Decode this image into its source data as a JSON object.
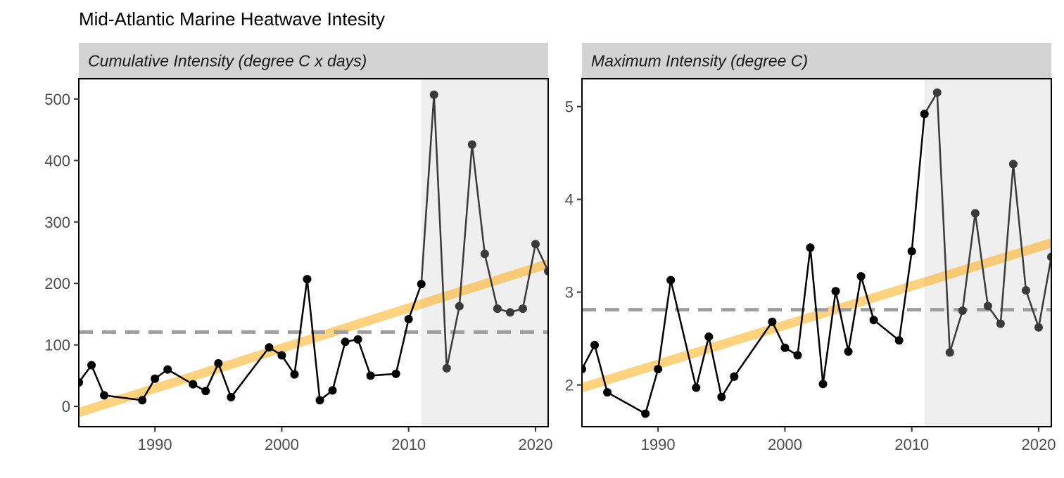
{
  "title": "Mid-Atlantic Marine Heatwave Intesity",
  "colors": {
    "line": "#000000",
    "recent_line": "#3a3a3a",
    "trend": "#ffa500",
    "mean": "#9e9e9e",
    "shade": "#efefef",
    "strip": "#d3d3d3"
  },
  "chart_data": [
    {
      "type": "line",
      "strip_label": "Cumulative Intensity (degree C x days)",
      "xlim": [
        1984,
        2021
      ],
      "ylim": [
        -33,
        533
      ],
      "x_ticks": [
        1990,
        2000,
        2010,
        2020
      ],
      "y_ticks": [
        0,
        100,
        200,
        300,
        400,
        500
      ],
      "shaded_from": 2011,
      "mean": 121,
      "trend": {
        "x": [
          1984,
          2021
        ],
        "y": [
          -10,
          232
        ]
      },
      "series": [
        {
          "x": [
            1984,
            1985,
            1986,
            1989,
            1990,
            1991,
            1993,
            1994,
            1995,
            1996,
            1999,
            2000,
            2001,
            2002,
            2003,
            2004,
            2005,
            2006,
            2007,
            2009,
            2010,
            2011,
            2012,
            2013,
            2014,
            2015,
            2016,
            2017,
            2018,
            2019,
            2020,
            2021
          ],
          "y": [
            39,
            67,
            18,
            10,
            45,
            60,
            36,
            25,
            70,
            15,
            96,
            83,
            52,
            207,
            10,
            26,
            105,
            109,
            50,
            53,
            142,
            199,
            507,
            62,
            163,
            426,
            248,
            159,
            153,
            159,
            264,
            220
          ]
        }
      ]
    },
    {
      "type": "line",
      "strip_label": "Maximum Intensity (degree C)",
      "xlim": [
        1984,
        2021
      ],
      "ylim": [
        1.55,
        5.3
      ],
      "x_ticks": [
        1990,
        2000,
        2010,
        2020
      ],
      "y_ticks": [
        2,
        3,
        4,
        5
      ],
      "shaded_from": 2011,
      "mean": 2.81,
      "trend": {
        "x": [
          1984,
          2021
        ],
        "y": [
          1.97,
          3.53
        ]
      },
      "series": [
        {
          "x": [
            1984,
            1985,
            1986,
            1989,
            1990,
            1991,
            1993,
            1994,
            1995,
            1996,
            1999,
            2000,
            2001,
            2002,
            2003,
            2004,
            2005,
            2006,
            2007,
            2009,
            2010,
            2011,
            2012,
            2013,
            2014,
            2015,
            2016,
            2017,
            2018,
            2019,
            2020,
            2021
          ],
          "y": [
            2.17,
            2.43,
            1.92,
            1.69,
            2.17,
            3.13,
            1.97,
            2.52,
            1.87,
            2.09,
            2.68,
            2.4,
            2.32,
            3.48,
            2.01,
            3.01,
            2.36,
            3.17,
            2.7,
            2.48,
            3.44,
            4.92,
            5.15,
            2.35,
            2.8,
            3.85,
            2.85,
            2.66,
            4.38,
            3.02,
            2.62,
            3.38
          ]
        }
      ]
    }
  ]
}
